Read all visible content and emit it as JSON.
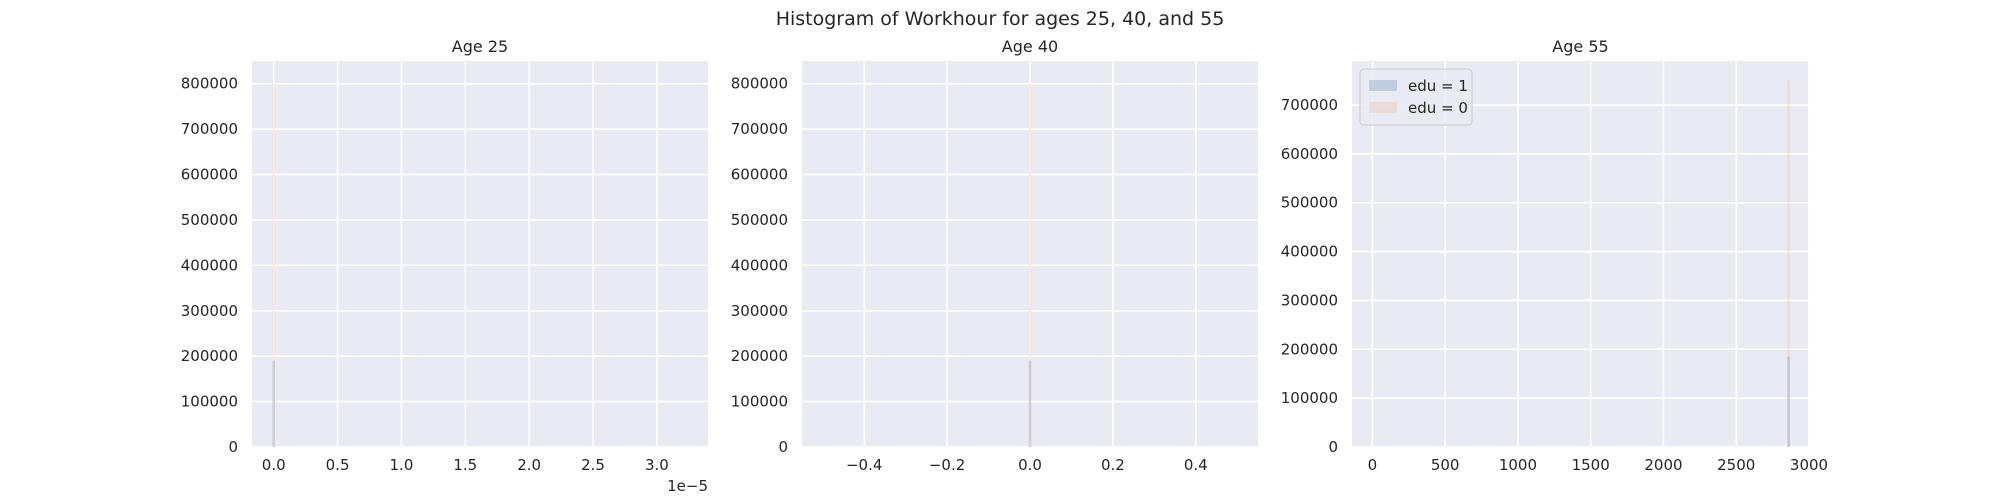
{
  "figure": {
    "title": "Histogram of Workhour for ages 25, 40, and 55"
  },
  "colors": {
    "panel_background": "#eaeaf2",
    "grid": "#ffffff",
    "edu1": "#4c72b0",
    "edu0": "#dd8452",
    "text": "#262626"
  },
  "chart_data": [
    {
      "type": "bar",
      "chart_type": "histogram",
      "title": "Age 25",
      "xlabel": "",
      "ylabel": "",
      "x_offset_text": "1e−5",
      "xlim": [
        -0.17,
        3.4
      ],
      "ylim": [
        0,
        850000
      ],
      "xticks": [
        0.0,
        0.5,
        1.0,
        1.5,
        2.0,
        2.5,
        3.0
      ],
      "xtick_labels": [
        "0.0",
        "0.5",
        "1.0",
        "1.5",
        "2.0",
        "2.5",
        "3.0"
      ],
      "yticks": [
        0,
        100000,
        200000,
        300000,
        400000,
        500000,
        600000,
        700000,
        800000
      ],
      "ytick_labels": [
        "0",
        "100000",
        "200000",
        "300000",
        "400000",
        "500000",
        "600000",
        "700000",
        "800000"
      ],
      "grid": true,
      "series": [
        {
          "name": "edu = 1",
          "color": "#4c72b0",
          "alpha": 0.25,
          "bins": [
            {
              "x": 0.0,
              "count": 190000
            }
          ]
        },
        {
          "name": "edu = 0",
          "color": "#dd8452",
          "alpha": 0.15,
          "bins": [
            {
              "x": 0.0,
              "count": 800000
            }
          ]
        }
      ]
    },
    {
      "type": "bar",
      "chart_type": "histogram",
      "title": "Age 40",
      "xlabel": "",
      "ylabel": "",
      "x_offset_text": "",
      "xlim": [
        -0.55,
        0.55
      ],
      "ylim": [
        0,
        850000
      ],
      "xticks": [
        -0.4,
        -0.2,
        0.0,
        0.2,
        0.4
      ],
      "xtick_labels": [
        "−0.4",
        "−0.2",
        "0.0",
        "0.2",
        "0.4"
      ],
      "yticks": [
        0,
        100000,
        200000,
        300000,
        400000,
        500000,
        600000,
        700000,
        800000
      ],
      "ytick_labels": [
        "0",
        "100000",
        "200000",
        "300000",
        "400000",
        "500000",
        "600000",
        "700000",
        "800000"
      ],
      "grid": true,
      "series": [
        {
          "name": "edu = 1",
          "color": "#4c72b0",
          "alpha": 0.25,
          "bins": [
            {
              "x": 0.0,
              "count": 190000
            }
          ]
        },
        {
          "name": "edu = 0",
          "color": "#dd8452",
          "alpha": 0.15,
          "bins": [
            {
              "x": 0.0,
              "count": 800000
            }
          ]
        }
      ]
    },
    {
      "type": "bar",
      "chart_type": "histogram",
      "title": "Age 55",
      "xlabel": "",
      "ylabel": "",
      "x_offset_text": "",
      "xlim": [
        -140,
        3000
      ],
      "ylim": [
        0,
        790000
      ],
      "xticks": [
        0,
        500,
        1000,
        1500,
        2000,
        2500,
        3000
      ],
      "xtick_labels": [
        "0",
        "500",
        "1000",
        "1500",
        "2000",
        "2500",
        "3000"
      ],
      "yticks": [
        0,
        100000,
        200000,
        300000,
        400000,
        500000,
        600000,
        700000
      ],
      "ytick_labels": [
        "0",
        "100000",
        "200000",
        "300000",
        "400000",
        "500000",
        "600000",
        "700000"
      ],
      "grid": true,
      "legend": {
        "placement": "top-left",
        "entries": [
          "edu = 1",
          "edu = 0"
        ]
      },
      "series": [
        {
          "name": "edu = 1",
          "color": "#4c72b0",
          "alpha": 0.25,
          "bins": [
            {
              "x": 2860,
              "count": 185000
            }
          ]
        },
        {
          "name": "edu = 0",
          "color": "#dd8452",
          "alpha": 0.15,
          "bins": [
            {
              "x": 2860,
              "count": 750000
            }
          ]
        }
      ]
    }
  ]
}
